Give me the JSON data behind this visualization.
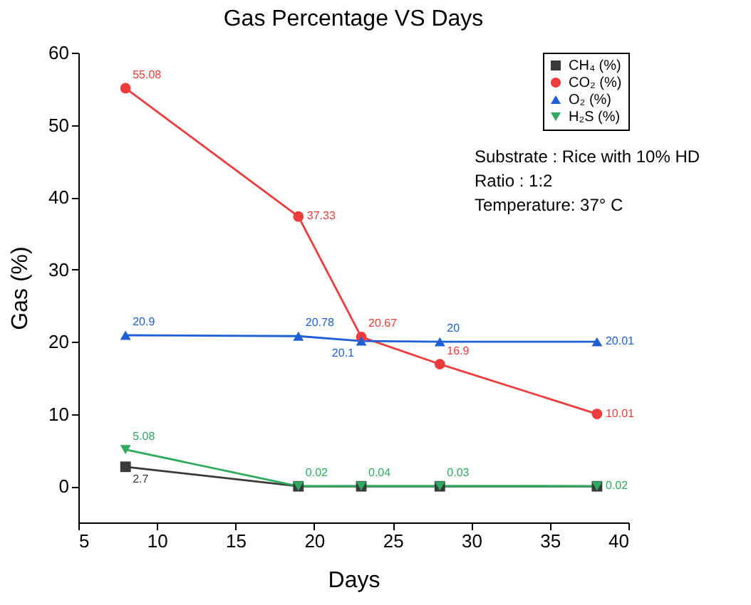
{
  "chart_data": {
    "type": "line",
    "title": "Gas Percentage VS Days",
    "xlabel": "Days",
    "ylabel": "Gas (%)",
    "x": [
      8,
      19,
      23,
      28,
      38
    ],
    "series": [
      {
        "name": "CH₄ (%)",
        "color": "#3a3a3a",
        "marker": "square",
        "values": [
          2.7,
          0,
          0,
          0,
          0
        ],
        "value_labels": [
          "2.7",
          null,
          null,
          null,
          null
        ]
      },
      {
        "name": "CO₂ (%)",
        "color": "#ee3b3b",
        "marker": "circle",
        "values": [
          55.08,
          37.33,
          20.67,
          16.9,
          10.01
        ],
        "value_labels": [
          "55.08",
          "37.33",
          "20.67",
          "16.9",
          "10.01"
        ]
      },
      {
        "name": "O₂ (%)",
        "color": "#1f5fd6",
        "marker": "triangle",
        "values": [
          20.9,
          20.78,
          20.1,
          20,
          20.01
        ],
        "value_labels": [
          "20.9",
          "20.78",
          "20.1",
          "20",
          "20.01"
        ]
      },
      {
        "name": "H₂S (%)",
        "color": "#2eaa5c",
        "marker": "triangle-down",
        "values": [
          5.08,
          0.02,
          0.04,
          0.03,
          0.02
        ],
        "value_labels": [
          "5.08",
          "0.02",
          "0.04",
          "0.03",
          "0.02"
        ]
      }
    ],
    "xlim": [
      5,
      40
    ],
    "xticks": [
      5,
      10,
      15,
      20,
      25,
      30,
      35,
      40
    ],
    "ylim": [
      -5,
      60
    ],
    "yticks": [
      0,
      10,
      20,
      30,
      40,
      50,
      60
    ],
    "grid": false,
    "legend": "top right",
    "annotations": [
      "Substrate      : Rice with 10% HD",
      "Ratio             : 1:2",
      "Temperature: 37° C"
    ]
  }
}
